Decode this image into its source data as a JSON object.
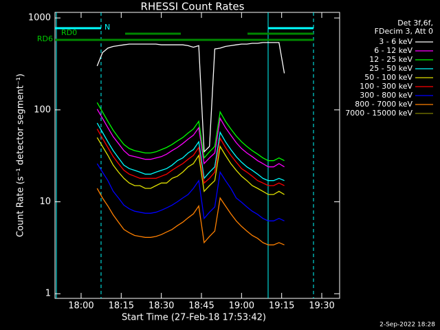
{
  "chart_data": {
    "type": "line",
    "title": "RHESSI Count Rates",
    "xlabel": "Start Time (27-Feb-18 17:53:42)",
    "ylabel": "Count Rate (s⁻¹ detector segment⁻¹)",
    "legend_title": [
      "Det 3f,6f,",
      "FDecim 3, Att 0"
    ],
    "annotations": [
      "N",
      "RD0",
      "RD6"
    ],
    "timestamp": "2-Sep-2022 18:28",
    "log_y": true,
    "xlim": [
      "17:50:14",
      "19:36:41"
    ],
    "xticks": [
      "18:00",
      "18:15",
      "18:30",
      "18:45",
      "19:00",
      "19:15",
      "19:30"
    ],
    "ylim": [
      0.89,
      1150
    ],
    "yticks": [
      1,
      10,
      100,
      1000
    ],
    "x": [
      "18:06",
      "18:08",
      "18:10",
      "18:12",
      "18:14",
      "18:16",
      "18:18",
      "18:20",
      "18:22",
      "18:24",
      "18:26",
      "18:28",
      "18:30",
      "18:32",
      "18:34",
      "18:36",
      "18:38",
      "18:40",
      "18:42",
      "18:44",
      "18:46",
      "18:48",
      "18:50",
      "18:52",
      "18:54",
      "18:56",
      "18:58",
      "19:00",
      "19:02",
      "19:04",
      "19:06",
      "19:08",
      "19:10",
      "19:12",
      "19:14",
      "19:16"
    ],
    "series": [
      {
        "name": "3 - 6 keV",
        "color": "#ffffff",
        "values": [
          300,
          420,
          470,
          490,
          500,
          510,
          520,
          520,
          520,
          520,
          520,
          520,
          510,
          510,
          510,
          510,
          510,
          500,
          480,
          500,
          35,
          40,
          460,
          470,
          490,
          500,
          510,
          520,
          520,
          530,
          530,
          540,
          540,
          540,
          540,
          250
        ]
      },
      {
        "name": "6 - 12 keV",
        "color": "#ff00ff",
        "values": [
          102,
          81,
          64,
          51,
          43,
          36,
          32,
          31,
          30,
          29,
          29,
          30,
          31,
          33,
          36,
          39,
          43,
          48,
          53,
          64,
          26,
          30,
          34,
          81,
          64,
          53,
          44,
          38,
          34,
          31,
          28,
          26,
          24,
          24,
          26,
          24
        ]
      },
      {
        "name": "12 - 25 keV",
        "color": "#00ff00",
        "values": [
          120,
          95,
          75,
          60,
          50,
          42,
          38,
          36,
          35,
          34,
          34,
          35,
          37,
          39,
          42,
          46,
          50,
          56,
          62,
          75,
          30,
          35,
          40,
          95,
          75,
          62,
          52,
          45,
          40,
          36,
          33,
          30,
          28,
          28,
          30,
          28
        ]
      },
      {
        "name": "25 - 50 keV",
        "color": "#00ffff",
        "values": [
          72,
          57,
          45,
          36,
          30,
          25,
          23,
          22,
          21,
          20,
          20,
          21,
          22,
          23,
          25,
          28,
          30,
          34,
          37,
          45,
          18,
          21,
          24,
          57,
          45,
          37,
          31,
          27,
          24,
          22,
          20,
          18,
          17,
          17,
          18,
          17
        ]
      },
      {
        "name": "50 - 100 keV",
        "color": "#e0e000",
        "values": [
          50,
          40,
          32,
          25,
          21,
          18,
          16,
          15,
          15,
          14,
          14,
          15,
          16,
          16,
          18,
          19,
          21,
          24,
          26,
          32,
          13,
          15,
          17,
          40,
          32,
          26,
          22,
          19,
          17,
          15,
          14,
          13,
          12,
          12,
          13,
          12
        ]
      },
      {
        "name": "100 - 300 keV",
        "color": "#ff0000",
        "values": [
          62,
          49,
          39,
          31,
          26,
          22,
          20,
          19,
          18,
          18,
          18,
          18,
          19,
          20,
          22,
          24,
          26,
          29,
          32,
          39,
          16,
          18,
          21,
          49,
          39,
          32,
          27,
          23,
          21,
          19,
          17,
          16,
          15,
          15,
          16,
          15
        ]
      },
      {
        "name": "300 - 800 keV",
        "color": "#0000ff",
        "values": [
          26,
          21,
          17,
          13,
          11,
          9.2,
          8.4,
          7.9,
          7.7,
          7.5,
          7.5,
          7.7,
          8.1,
          8.6,
          9.2,
          10,
          11,
          12,
          14,
          17,
          6.6,
          7.7,
          8.8,
          21,
          17,
          14,
          11,
          9.9,
          8.8,
          7.9,
          7.3,
          6.6,
          6.2,
          6.2,
          6.6,
          6.2
        ]
      },
      {
        "name": "800 - 7000 keV",
        "color": "#ff8000",
        "values": [
          14,
          11,
          9,
          7.2,
          6,
          5,
          4.6,
          4.3,
          4.2,
          4.1,
          4.1,
          4.2,
          4.4,
          4.7,
          5,
          5.5,
          6,
          6.7,
          7.4,
          9,
          3.6,
          4.2,
          4.8,
          11,
          9,
          7.4,
          6.2,
          5.4,
          4.8,
          4.3,
          4,
          3.6,
          3.4,
          3.4,
          3.6,
          3.4
        ]
      },
      {
        "name": "7000 - 15000 keV",
        "color": "#808000",
        "values": [
          null,
          null,
          null,
          null,
          null,
          null,
          null,
          null,
          null,
          null,
          null,
          null,
          null,
          null,
          null,
          null,
          null,
          null,
          null,
          null,
          null,
          null,
          null,
          null,
          null,
          null,
          null,
          null,
          null,
          null,
          null,
          null,
          null,
          null,
          null,
          null
        ]
      }
    ]
  }
}
